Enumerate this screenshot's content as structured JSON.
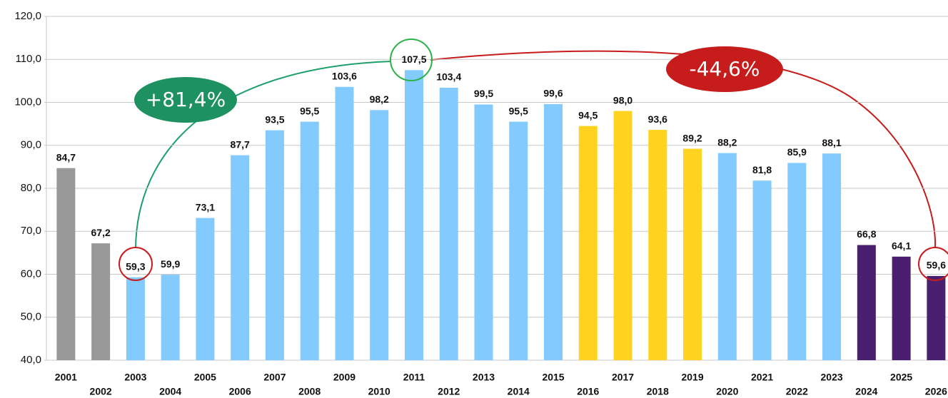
{
  "chart_data": {
    "type": "bar",
    "categories": [
      "2001",
      "2002",
      "2003",
      "2004",
      "2005",
      "2006",
      "2007",
      "2008",
      "2009",
      "2010",
      "2011",
      "2012",
      "2013",
      "2014",
      "2015",
      "2016",
      "2017",
      "2018",
      "2019",
      "2020",
      "2021",
      "2022",
      "2023",
      "2024",
      "2025",
      "2026"
    ],
    "values": [
      84.7,
      67.2,
      59.3,
      59.9,
      73.1,
      87.7,
      93.5,
      95.5,
      103.6,
      98.2,
      107.5,
      103.4,
      99.5,
      95.5,
      99.6,
      94.5,
      98.0,
      93.6,
      89.2,
      88.2,
      81.8,
      85.9,
      88.1,
      66.8,
      64.1,
      59.6
    ],
    "value_labels": [
      "84,7",
      "67,2",
      "59,3",
      "59,9",
      "73,1",
      "87,7",
      "93,5",
      "95,5",
      "103,6",
      "98,2",
      "107,5",
      "103,4",
      "99,5",
      "95,5",
      "99,6",
      "94,5",
      "98,0",
      "93,6",
      "89,2",
      "88,2",
      "81,8",
      "85,9",
      "88,1",
      "66,8",
      "64,1",
      "59,6"
    ],
    "colors": [
      "#999999",
      "#999999",
      "#83caff",
      "#83caff",
      "#83caff",
      "#83caff",
      "#83caff",
      "#83caff",
      "#83caff",
      "#83caff",
      "#83caff",
      "#83caff",
      "#83caff",
      "#83caff",
      "#83caff",
      "#ffd320",
      "#ffd320",
      "#ffd320",
      "#ffd320",
      "#83caff",
      "#83caff",
      "#83caff",
      "#83caff",
      "#4b1f6f",
      "#4b1f6f",
      "#4b1f6f"
    ],
    "ylim": [
      40,
      120
    ],
    "yticks": [
      {
        "value": 40,
        "label": "40,0"
      },
      {
        "value": 50,
        "label": "50,0"
      },
      {
        "value": 60,
        "label": "60,0"
      },
      {
        "value": 70,
        "label": "70,0"
      },
      {
        "value": 80,
        "label": "80,0"
      },
      {
        "value": 90,
        "label": "90,0"
      },
      {
        "value": 100,
        "label": "100,0"
      },
      {
        "value": 110,
        "label": "110,0"
      },
      {
        "value": 120,
        "label": "120,0"
      }
    ],
    "grid": true,
    "annotations": [
      "+81,4%",
      "-44,6%"
    ]
  }
}
